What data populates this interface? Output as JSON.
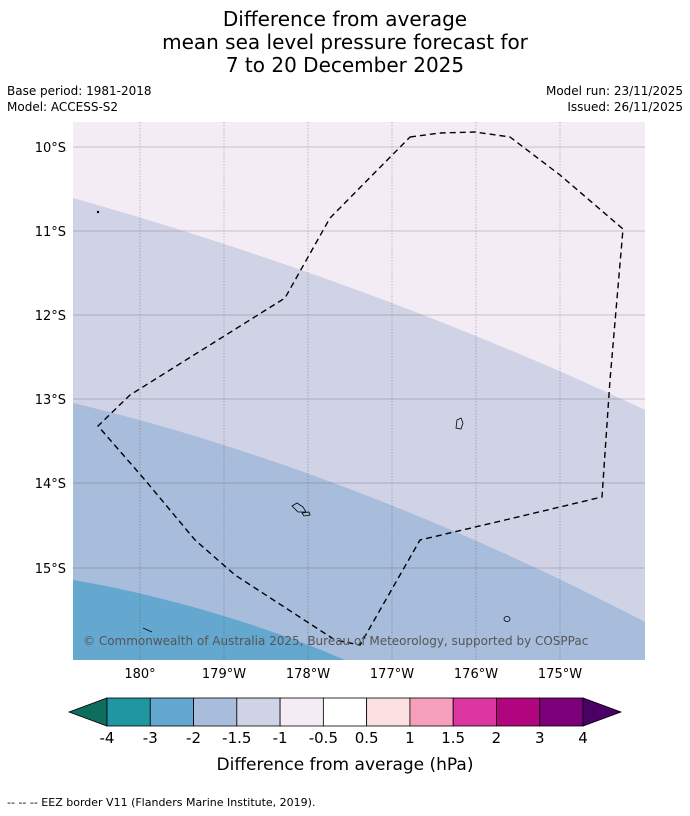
{
  "title": {
    "line1": "Difference from average",
    "line2": "mean sea level pressure forecast for",
    "line3": "7 to 20 December 2025"
  },
  "meta": {
    "base_period": "Base period: 1981-2018",
    "model": "Model: ACCESS-S2",
    "model_run": "Model run: 23/11/2025",
    "issued": "Issued: 26/11/2025"
  },
  "map": {
    "lat_labels": [
      "10°S",
      "11°S",
      "12°S",
      "13°S",
      "14°S",
      "15°S"
    ],
    "lon_labels": [
      "180°",
      "179°W",
      "178°W",
      "177°W",
      "176°W",
      "175°W"
    ],
    "attribution": "© Commonwealth of Australia 2025, Bureau of Meteorology, supported by COSPPac",
    "shading_bands_hpa": [
      "-0.5 to -1",
      "-1 to -1.5",
      "-1.5 to -2",
      "-2 to -3"
    ]
  },
  "colorbar": {
    "title": "Difference from average (hPa)",
    "ticks": [
      "-4",
      "-3",
      "-2",
      "-1.5",
      "-1",
      "-0.5",
      "0.5",
      "1",
      "1.5",
      "2",
      "3",
      "4"
    ],
    "colors": [
      "#0d6e5e",
      "#2196a3",
      "#64a8d0",
      "#a8bcdc",
      "#d0d2e6",
      "#f3ecf5",
      "#ffffff",
      "#fde0e0",
      "#f59fbd",
      "#dd36a0",
      "#b0057f",
      "#7b0079",
      "#4a0064"
    ]
  },
  "footer": {
    "legend": "--  --  -- EEZ border V11 (Flanders Marine Institute, 2019)."
  }
}
